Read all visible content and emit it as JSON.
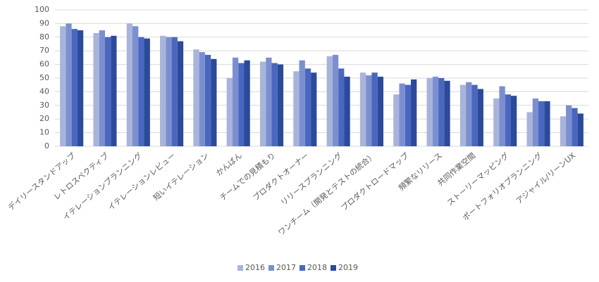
{
  "chart_data": {
    "type": "bar",
    "categories": [
      "デイリースタンドアップ",
      "レトロスペクティブ",
      "イテレーションプランニング",
      "イテレーションレビュー",
      "短いイテレーション",
      "かんばん",
      "チームでの見積もり",
      "プロダクトオーナー",
      "リリースプランニング",
      "ワンチーム（開発とテストの統合）",
      "プロダクトロードマップ",
      "頻繁なリリース",
      "共同作業空間",
      "ストーリーマッピング",
      "ポートフォリオプランニング",
      "アジャイル/リーンUX"
    ],
    "series": [
      {
        "name": "2016",
        "color": "#a9b4db",
        "values": [
          88,
          83,
          90,
          81,
          71,
          50,
          62,
          55,
          66,
          54,
          38,
          50,
          45,
          35,
          25,
          22
        ]
      },
      {
        "name": "2017",
        "color": "#7b8fd0",
        "values": [
          90,
          85,
          88,
          80,
          69,
          65,
          65,
          63,
          67,
          52,
          46,
          51,
          47,
          44,
          35,
          30
        ]
      },
      {
        "name": "2018",
        "color": "#4a67bf",
        "values": [
          86,
          80,
          80,
          80,
          67,
          61,
          61,
          57,
          57,
          54,
          45,
          50,
          45,
          38,
          33,
          28
        ]
      },
      {
        "name": "2019",
        "color": "#2c4a9a",
        "values": [
          85,
          81,
          79,
          77,
          64,
          63,
          60,
          54,
          51,
          51,
          49,
          48,
          42,
          37,
          33,
          24
        ]
      }
    ],
    "ylim": [
      0,
      100
    ],
    "yticks": [
      0,
      10,
      20,
      30,
      40,
      50,
      60,
      70,
      80,
      90,
      100
    ],
    "grid": true,
    "legend": "bottom"
  }
}
